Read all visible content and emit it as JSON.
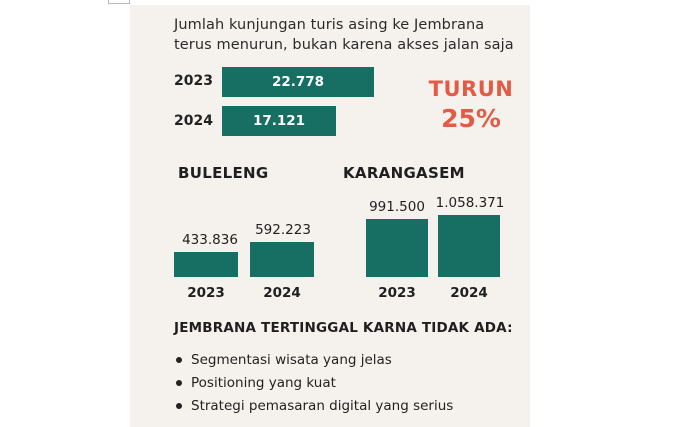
{
  "headline": {
    "line1": "Jumlah kunjungan turis asing ke Jembrana",
    "line2": "terus menurun, bukan karena akses jalan saja"
  },
  "decline": {
    "label": "TURUN",
    "percent": "25%"
  },
  "footer": {
    "title": "JEMBRANA TERTINGGAL KARNA TIDAK ADA:",
    "items": [
      "Segmentasi wisata yang jelas",
      "Positioning yang kuat",
      "Strategi pemasaran digital yang serius"
    ]
  },
  "colors": {
    "bar": "#176e62",
    "accent": "#e45a45",
    "background": "#f5f2ed"
  },
  "chart_data": [
    {
      "type": "bar",
      "orientation": "horizontal",
      "title": "",
      "categories": [
        "2023",
        "2024"
      ],
      "values": [
        22778,
        17121
      ],
      "value_labels": [
        "22.778",
        "17.121"
      ]
    },
    {
      "type": "bar",
      "title": "BULELENG",
      "categories": [
        "2023",
        "2024"
      ],
      "values": [
        433836,
        592223
      ],
      "value_labels": [
        "433.836",
        "592.223"
      ]
    },
    {
      "type": "bar",
      "title": "KARANGASEM",
      "categories": [
        "2023",
        "2024"
      ],
      "values": [
        991500,
        1058371
      ],
      "value_labels": [
        "991.500",
        "1.058.371"
      ]
    }
  ]
}
